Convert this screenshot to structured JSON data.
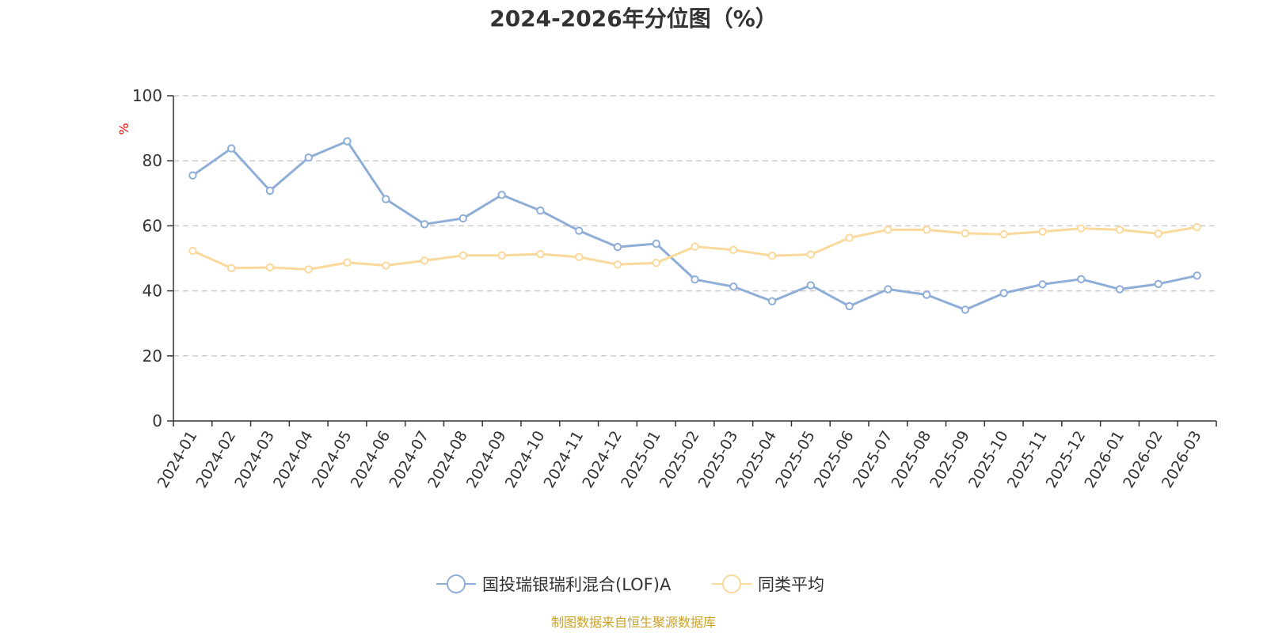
{
  "chart_data": {
    "type": "line",
    "title": "2024-2026年分位图（%）",
    "ylabel": "%",
    "ylim": [
      0,
      100
    ],
    "yticks": [
      0,
      20,
      40,
      60,
      80,
      100
    ],
    "grid": true,
    "legend_position": "bottom",
    "categories": [
      "2024-01",
      "2024-02",
      "2024-03",
      "2024-04",
      "2024-05",
      "2024-06",
      "2024-07",
      "2024-08",
      "2024-09",
      "2024-10",
      "2024-11",
      "2024-12",
      "2025-01",
      "2025-02",
      "2025-03",
      "2025-04",
      "2025-05",
      "2025-06",
      "2025-07",
      "2025-08",
      "2025-09",
      "2025-10",
      "2025-11",
      "2025-12",
      "2026-01",
      "2026-02",
      "2026-03"
    ],
    "series": [
      {
        "name": "国投瑞银瑞利混合(LOF)A",
        "color": "#8eaed8",
        "values": [
          75.5,
          83.8,
          70.8,
          81.0,
          86.0,
          68.2,
          60.5,
          62.3,
          69.5,
          64.7,
          58.5,
          53.5,
          54.5,
          43.5,
          41.3,
          36.8,
          41.7,
          35.3,
          40.5,
          38.8,
          34.2,
          39.3,
          42.0,
          43.6,
          40.5,
          42.1,
          44.7
        ]
      },
      {
        "name": "同类平均",
        "color": "#fbd89b",
        "values": [
          52.3,
          47.0,
          47.2,
          46.6,
          48.7,
          47.8,
          49.3,
          50.9,
          50.9,
          51.3,
          50.4,
          48.1,
          48.6,
          53.6,
          52.6,
          50.8,
          51.2,
          56.3,
          58.8,
          58.8,
          57.7,
          57.4,
          58.2,
          59.2,
          58.8,
          57.6,
          59.6
        ]
      }
    ],
    "axis_color": "#333333",
    "grid_color": "#cccccc",
    "unit_color": "#ff0000"
  },
  "source": {
    "text": "制图数据来自恒生聚源数据库",
    "color": "#c9a227"
  }
}
